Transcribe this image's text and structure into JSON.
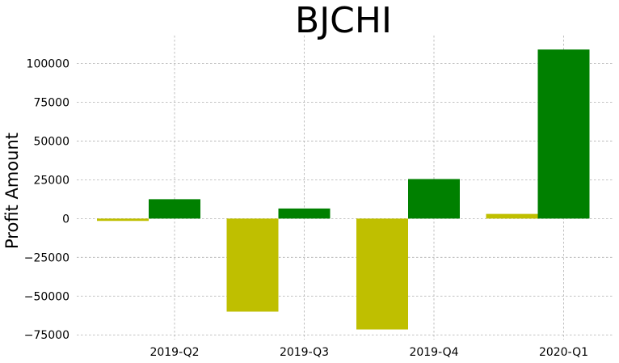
{
  "chart_data": {
    "type": "bar",
    "title": "BJCHI",
    "xlabel": "",
    "ylabel": "Profit Amount",
    "categories": [
      "2019-Q2",
      "2019-Q3",
      "2019-Q4",
      "2020-Q1"
    ],
    "series": [
      {
        "color": "#bfbf00",
        "values": [
          -1500,
          -60000,
          -71500,
          3000
        ]
      },
      {
        "color": "#008000",
        "values": [
          12500,
          6500,
          25500,
          109000
        ]
      }
    ],
    "ylim": [
      -78000,
      118000
    ],
    "yticks": [
      -75000,
      -50000,
      -25000,
      0,
      25000,
      50000,
      75000,
      100000
    ],
    "ytick_labels": [
      "−75000",
      "−50000",
      "−25000",
      "0",
      "25000",
      "50000",
      "75000",
      "100000"
    ],
    "grid": true,
    "legend": "none"
  }
}
